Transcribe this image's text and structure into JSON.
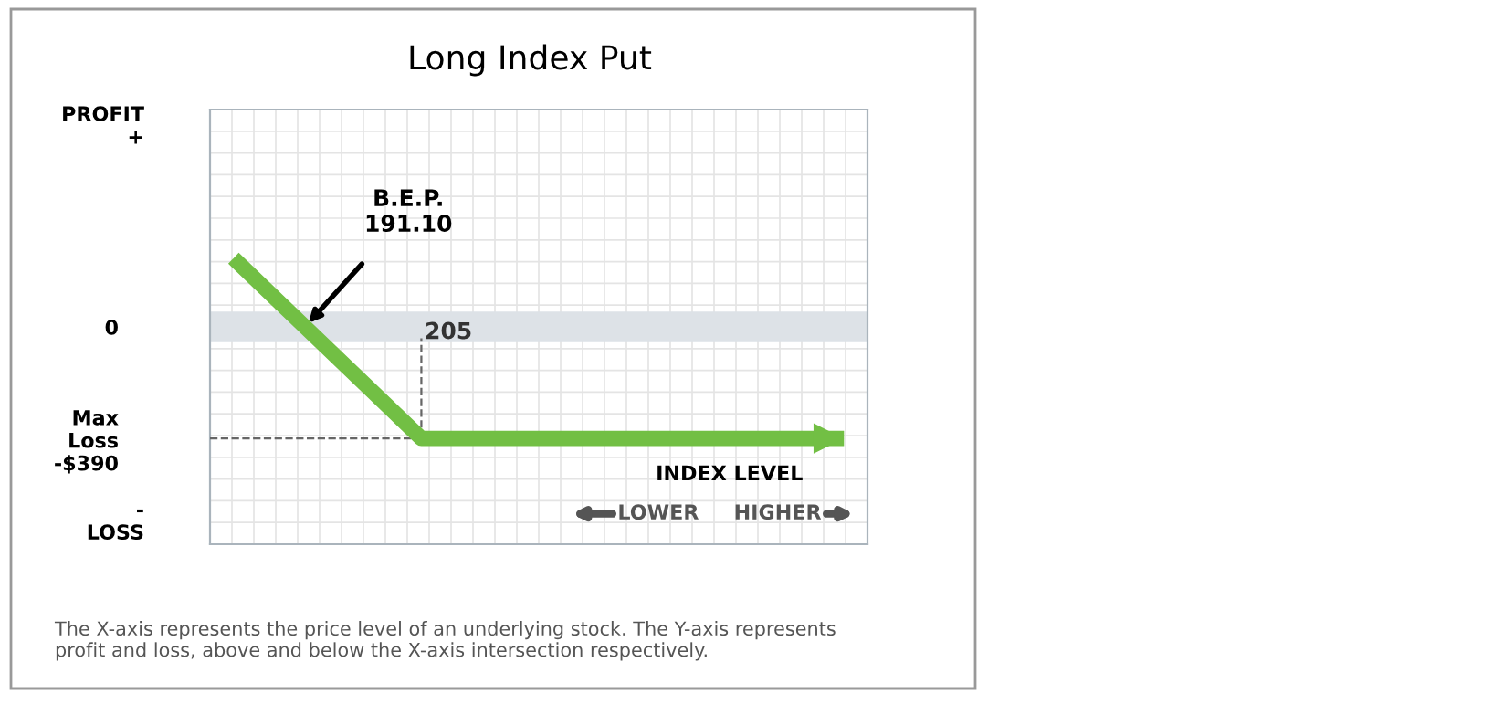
{
  "chart_data": {
    "type": "line",
    "title": "Long Index Put",
    "categories": [
      null,
      null,
      null,
      null,
      null,
      null,
      null,
      null,
      null,
      null,
      null,
      null,
      null,
      null
    ],
    "series": [
      {
        "color": "#72bf44",
        "values": [
          240,
          82.5,
          -75,
          -232.5,
          -390,
          -390,
          -390,
          -390,
          -390,
          -390,
          -390,
          -390,
          -390,
          -390
        ]
      }
    ],
    "ylim": [
      -760,
      760
    ],
    "yticks": [
      {
        "value": 0,
        "label": "0"
      },
      {
        "value": -390,
        "label": "Max\nLoss\n-$390"
      }
    ],
    "ref_lines": [
      {
        "axis": "y",
        "value": -390,
        "color": "#666666",
        "line_style": "dashed"
      },
      {
        "axis": "y",
        "value": 0,
        "color": "#dde2e7"
      }
    ],
    "annotations": [
      "B.E.P.\n191.10",
      "205",
      "INDEX LEVEL",
      "LOWER",
      "HIGHER",
      "PROFIT\n+",
      "-\nLOSS",
      "The X-axis represents the price level of an underlying stock. The Y-axis represents profit and loss, above and below the X-axis intersection respectively."
    ],
    "grid": true,
    "line_style": "solid"
  }
}
